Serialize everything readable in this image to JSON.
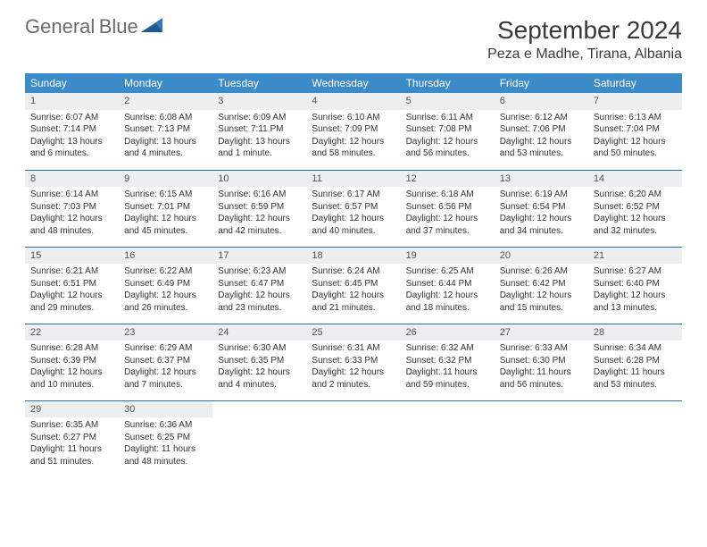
{
  "brand": {
    "name1": "General",
    "name2": "Blue"
  },
  "title": "September 2024",
  "subtitle": "Peza e Madhe, Tirana, Albania",
  "columns": [
    "Sunday",
    "Monday",
    "Tuesday",
    "Wednesday",
    "Thursday",
    "Friday",
    "Saturday"
  ],
  "colors": {
    "header_bg": "#3b8bc9",
    "header_text": "#ffffff",
    "daynum_bg": "#eceeef",
    "row_border": "#2f6fa8",
    "title_text": "#3a3a3a",
    "logo_gray": "#6b6b6b",
    "logo_blue": "#2f7bbf",
    "body_text": "#333333",
    "page_bg": "#ffffff"
  },
  "font_sizes": {
    "title": 28,
    "subtitle": 16,
    "weekday_header": 12,
    "daynum": 11,
    "cell": 10
  },
  "weeks": [
    [
      {
        "n": "1",
        "sr": "Sunrise: 6:07 AM",
        "ss": "Sunset: 7:14 PM",
        "dl": "Daylight: 13 hours and 6 minutes."
      },
      {
        "n": "2",
        "sr": "Sunrise: 6:08 AM",
        "ss": "Sunset: 7:13 PM",
        "dl": "Daylight: 13 hours and 4 minutes."
      },
      {
        "n": "3",
        "sr": "Sunrise: 6:09 AM",
        "ss": "Sunset: 7:11 PM",
        "dl": "Daylight: 13 hours and 1 minute."
      },
      {
        "n": "4",
        "sr": "Sunrise: 6:10 AM",
        "ss": "Sunset: 7:09 PM",
        "dl": "Daylight: 12 hours and 58 minutes."
      },
      {
        "n": "5",
        "sr": "Sunrise: 6:11 AM",
        "ss": "Sunset: 7:08 PM",
        "dl": "Daylight: 12 hours and 56 minutes."
      },
      {
        "n": "6",
        "sr": "Sunrise: 6:12 AM",
        "ss": "Sunset: 7:06 PM",
        "dl": "Daylight: 12 hours and 53 minutes."
      },
      {
        "n": "7",
        "sr": "Sunrise: 6:13 AM",
        "ss": "Sunset: 7:04 PM",
        "dl": "Daylight: 12 hours and 50 minutes."
      }
    ],
    [
      {
        "n": "8",
        "sr": "Sunrise: 6:14 AM",
        "ss": "Sunset: 7:03 PM",
        "dl": "Daylight: 12 hours and 48 minutes."
      },
      {
        "n": "9",
        "sr": "Sunrise: 6:15 AM",
        "ss": "Sunset: 7:01 PM",
        "dl": "Daylight: 12 hours and 45 minutes."
      },
      {
        "n": "10",
        "sr": "Sunrise: 6:16 AM",
        "ss": "Sunset: 6:59 PM",
        "dl": "Daylight: 12 hours and 42 minutes."
      },
      {
        "n": "11",
        "sr": "Sunrise: 6:17 AM",
        "ss": "Sunset: 6:57 PM",
        "dl": "Daylight: 12 hours and 40 minutes."
      },
      {
        "n": "12",
        "sr": "Sunrise: 6:18 AM",
        "ss": "Sunset: 6:56 PM",
        "dl": "Daylight: 12 hours and 37 minutes."
      },
      {
        "n": "13",
        "sr": "Sunrise: 6:19 AM",
        "ss": "Sunset: 6:54 PM",
        "dl": "Daylight: 12 hours and 34 minutes."
      },
      {
        "n": "14",
        "sr": "Sunrise: 6:20 AM",
        "ss": "Sunset: 6:52 PM",
        "dl": "Daylight: 12 hours and 32 minutes."
      }
    ],
    [
      {
        "n": "15",
        "sr": "Sunrise: 6:21 AM",
        "ss": "Sunset: 6:51 PM",
        "dl": "Daylight: 12 hours and 29 minutes."
      },
      {
        "n": "16",
        "sr": "Sunrise: 6:22 AM",
        "ss": "Sunset: 6:49 PM",
        "dl": "Daylight: 12 hours and 26 minutes."
      },
      {
        "n": "17",
        "sr": "Sunrise: 6:23 AM",
        "ss": "Sunset: 6:47 PM",
        "dl": "Daylight: 12 hours and 23 minutes."
      },
      {
        "n": "18",
        "sr": "Sunrise: 6:24 AM",
        "ss": "Sunset: 6:45 PM",
        "dl": "Daylight: 12 hours and 21 minutes."
      },
      {
        "n": "19",
        "sr": "Sunrise: 6:25 AM",
        "ss": "Sunset: 6:44 PM",
        "dl": "Daylight: 12 hours and 18 minutes."
      },
      {
        "n": "20",
        "sr": "Sunrise: 6:26 AM",
        "ss": "Sunset: 6:42 PM",
        "dl": "Daylight: 12 hours and 15 minutes."
      },
      {
        "n": "21",
        "sr": "Sunrise: 6:27 AM",
        "ss": "Sunset: 6:40 PM",
        "dl": "Daylight: 12 hours and 13 minutes."
      }
    ],
    [
      {
        "n": "22",
        "sr": "Sunrise: 6:28 AM",
        "ss": "Sunset: 6:39 PM",
        "dl": "Daylight: 12 hours and 10 minutes."
      },
      {
        "n": "23",
        "sr": "Sunrise: 6:29 AM",
        "ss": "Sunset: 6:37 PM",
        "dl": "Daylight: 12 hours and 7 minutes."
      },
      {
        "n": "24",
        "sr": "Sunrise: 6:30 AM",
        "ss": "Sunset: 6:35 PM",
        "dl": "Daylight: 12 hours and 4 minutes."
      },
      {
        "n": "25",
        "sr": "Sunrise: 6:31 AM",
        "ss": "Sunset: 6:33 PM",
        "dl": "Daylight: 12 hours and 2 minutes."
      },
      {
        "n": "26",
        "sr": "Sunrise: 6:32 AM",
        "ss": "Sunset: 6:32 PM",
        "dl": "Daylight: 11 hours and 59 minutes."
      },
      {
        "n": "27",
        "sr": "Sunrise: 6:33 AM",
        "ss": "Sunset: 6:30 PM",
        "dl": "Daylight: 11 hours and 56 minutes."
      },
      {
        "n": "28",
        "sr": "Sunrise: 6:34 AM",
        "ss": "Sunset: 6:28 PM",
        "dl": "Daylight: 11 hours and 53 minutes."
      }
    ],
    [
      {
        "n": "29",
        "sr": "Sunrise: 6:35 AM",
        "ss": "Sunset: 6:27 PM",
        "dl": "Daylight: 11 hours and 51 minutes."
      },
      {
        "n": "30",
        "sr": "Sunrise: 6:36 AM",
        "ss": "Sunset: 6:25 PM",
        "dl": "Daylight: 11 hours and 48 minutes."
      },
      null,
      null,
      null,
      null,
      null
    ]
  ]
}
